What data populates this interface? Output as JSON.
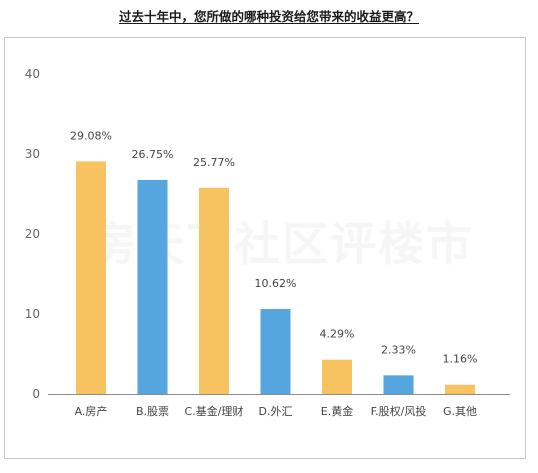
{
  "chart_data": {
    "type": "bar",
    "title": "过去十年中，您所做的哪种投资给您带来的收益更高？",
    "xlabel": "",
    "ylabel": "",
    "ylim": [
      0,
      40
    ],
    "yticks": [
      0,
      10,
      20,
      30,
      40
    ],
    "categories": [
      "A.房产",
      "B.股票",
      "C.基金/理财",
      "D.外汇",
      "E.黄金",
      "F.股权/风投",
      "G.其他"
    ],
    "values": [
      29.08,
      26.75,
      25.77,
      10.62,
      4.29,
      2.33,
      1.16
    ],
    "value_labels": [
      "29.08%",
      "26.75%",
      "25.77%",
      "10.62%",
      "4.29%",
      "2.33%",
      "1.16%"
    ],
    "bar_colors": [
      "#F6C360",
      "#55A6DE",
      "#F6C360",
      "#55A6DE",
      "#F6C360",
      "#55A6DE",
      "#F6C360"
    ],
    "grid": false,
    "legend": "none",
    "axis_color": "#8c8c8c"
  },
  "watermark": "房天下社区评楼市"
}
